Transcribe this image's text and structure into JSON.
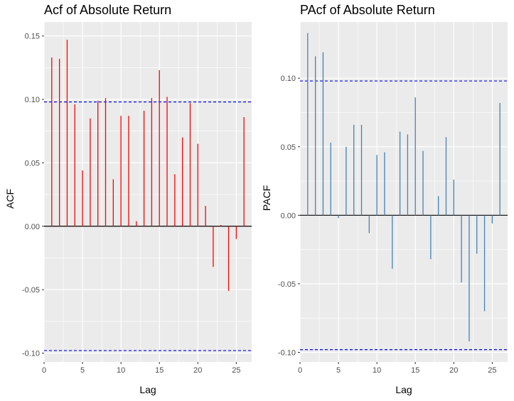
{
  "chart_data": [
    {
      "type": "bar",
      "title": "Acf of Absolute Return",
      "xlabel": "Lag",
      "ylabel": "ACF",
      "xlim": [
        0,
        27
      ],
      "ylim": [
        -0.107,
        0.161
      ],
      "x_ticks": [
        0,
        5,
        10,
        15,
        20,
        25
      ],
      "x_tick_labels": [
        "0",
        "5",
        "10",
        "15",
        "20",
        "25"
      ],
      "y_ticks": [
        -0.1,
        -0.05,
        0.0,
        0.05,
        0.1,
        0.15
      ],
      "y_tick_labels": [
        "-0.10",
        "-0.05",
        "0.00",
        "0.05",
        "0.10",
        "0.15"
      ],
      "confidence_limit": 0.098,
      "bar_color": "#ff0000",
      "confidence_color": "#0000ff",
      "panel_background": "#ebebeb",
      "grid": true,
      "x": [
        1,
        2,
        3,
        4,
        5,
        6,
        7,
        8,
        9,
        10,
        11,
        12,
        13,
        14,
        15,
        16,
        17,
        18,
        19,
        20,
        21,
        22,
        23,
        24,
        25,
        26
      ],
      "values": [
        0.133,
        0.132,
        0.147,
        0.096,
        0.044,
        0.085,
        0.099,
        0.101,
        0.037,
        0.087,
        0.087,
        0.004,
        0.091,
        0.101,
        0.123,
        0.102,
        0.041,
        0.07,
        0.097,
        0.065,
        0.016,
        -0.032,
        0.001,
        -0.051,
        -0.01,
        0.086
      ]
    },
    {
      "type": "bar",
      "title": "PAcf of Absolute Return",
      "xlabel": "Lag",
      "ylabel": "PACF",
      "xlim": [
        0,
        27
      ],
      "ylim": [
        -0.107,
        0.141
      ],
      "x_ticks": [
        0,
        5,
        10,
        15,
        20,
        25
      ],
      "x_tick_labels": [
        "0",
        "5",
        "10",
        "15",
        "20",
        "25"
      ],
      "y_ticks": [
        -0.1,
        -0.05,
        0.0,
        0.05,
        0.1
      ],
      "y_tick_labels": [
        "-0.10",
        "-0.05",
        "0.00",
        "0.05",
        "0.10"
      ],
      "confidence_limit": 0.098,
      "bar_color": "#4682b4",
      "confidence_color": "#0000ff",
      "panel_background": "#ebebeb",
      "grid": true,
      "x": [
        1,
        2,
        3,
        4,
        5,
        6,
        7,
        8,
        9,
        10,
        11,
        12,
        13,
        14,
        15,
        16,
        17,
        18,
        19,
        20,
        21,
        22,
        23,
        24,
        25,
        26
      ],
      "values": [
        0.133,
        0.116,
        0.119,
        0.053,
        -0.002,
        0.05,
        0.066,
        0.066,
        -0.013,
        0.044,
        0.046,
        -0.039,
        0.061,
        0.059,
        0.086,
        0.047,
        -0.032,
        0.014,
        0.057,
        0.026,
        -0.049,
        -0.092,
        -0.028,
        -0.07,
        -0.006,
        0.082
      ]
    }
  ]
}
